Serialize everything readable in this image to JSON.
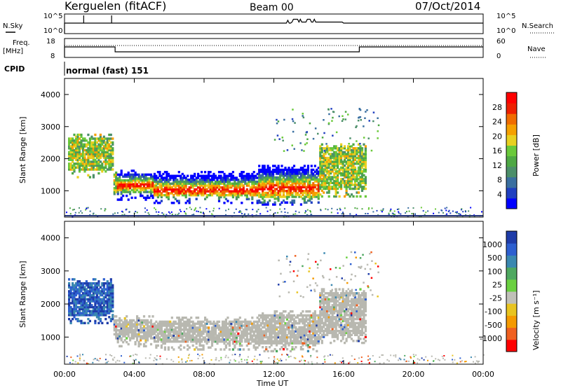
{
  "header": {
    "station": "Kerguelen (fitACF)",
    "beam": "Beam 00",
    "date": "07/Oct/2014"
  },
  "panels": {
    "nsky": {
      "label": "N.Sky",
      "right_label": "N.Search",
      "ticks_left": [
        "10^5",
        "10^0"
      ],
      "ticks_right": [
        "10^5",
        "10^0"
      ]
    },
    "freq": {
      "label_top": "Freq.",
      "label_bottom": "[MHz]",
      "right_label": "Nave",
      "ticks_left": [
        "18",
        "8"
      ],
      "ticks_right": [
        "60",
        "0"
      ]
    },
    "cpid": {
      "label": "CPID",
      "value": "normal (fast) 151"
    }
  },
  "colors": {
    "power": [
      "#0000ff",
      "#2040c0",
      "#3a6fa0",
      "#4c8f6a",
      "#4ea844",
      "#6ac93a",
      "#e8d020",
      "#f5a000",
      "#f06c00",
      "#ee2000",
      "#ff0000"
    ],
    "velocity": [
      "#1f3ca8",
      "#2d5fd0",
      "#3a88b0",
      "#4ea860",
      "#6ad040",
      "#c0c0b8",
      "#e8c420",
      "#f59a00",
      "#f06020",
      "#ff0000"
    ],
    "ground_scatter": "#b8b8b0"
  },
  "chart_data": [
    {
      "type": "heatmap",
      "name": "Power",
      "ylabel": "Slant Range [km]",
      "colorbar_label": "Power [dB]",
      "colorbar_ticks": [
        "28",
        "24",
        "20",
        "16",
        "12",
        "8",
        "4"
      ],
      "ylim": [
        180,
        4500
      ],
      "yticks": [
        "1000",
        "2000",
        "3000",
        "4000"
      ]
    },
    {
      "type": "heatmap",
      "name": "Velocity",
      "ylabel": "Slant Range [km]",
      "colorbar_label": "Velocity [m s⁻¹]",
      "colorbar_ticks": [
        "1000",
        "500",
        "100",
        "25",
        "-25",
        "-100",
        "-500",
        "-1000"
      ],
      "ylim": [
        180,
        4500
      ],
      "yticks": [
        "1000",
        "2000",
        "3000",
        "4000"
      ]
    }
  ],
  "xaxis": {
    "label": "Time UT",
    "ticks": [
      "00:00",
      "04:00",
      "08:00",
      "12:00",
      "16:00",
      "20:00",
      "00:00"
    ],
    "range_hours": [
      0,
      24
    ]
  }
}
